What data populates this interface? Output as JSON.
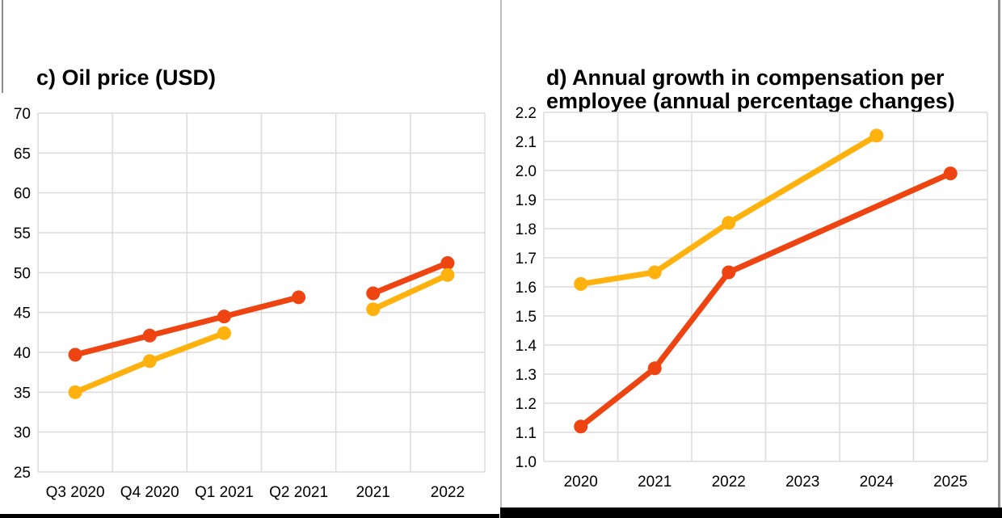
{
  "panels": [
    {
      "id": "panel-c",
      "title_lines": [
        "c) Oil price (USD)"
      ]
    },
    {
      "id": "panel-d",
      "title_lines": [
        "d) Annual growth in compensation per",
        "employee (annual percentage changes)"
      ]
    }
  ],
  "colors": {
    "series_red": "#ED4411",
    "series_yellow": "#FFB10E",
    "grid": "#DBDBDB",
    "divider_gray": "#BDBDBD",
    "border_gray": "#8C8C8C",
    "bottom_bar": "#000000"
  },
  "chart_data": [
    {
      "type": "line",
      "title": "c) Oil price (USD)",
      "categories": [
        "Q3 2020",
        "Q4 2020",
        "Q1 2021",
        "Q2 2021",
        "2021",
        "2022"
      ],
      "ylim": [
        25,
        70
      ],
      "yticks": [
        70,
        65,
        60,
        55,
        50,
        45,
        40,
        35,
        30,
        25
      ],
      "ytick_labels": [
        "70",
        "65",
        "60",
        "55",
        "50",
        "45",
        "40",
        "35",
        "30",
        "25"
      ],
      "grid": true,
      "legend": "none",
      "series": [
        {
          "name": "red-line",
          "color": "#ED4411",
          "segments": [
            [
              [
                0,
                39.7
              ],
              [
                1,
                42.1
              ],
              [
                2,
                44.5
              ],
              [
                3,
                46.9
              ]
            ],
            [
              [
                4,
                47.4
              ],
              [
                5,
                51.2
              ]
            ]
          ]
        },
        {
          "name": "yellow-line",
          "color": "#FFB10E",
          "segments": [
            [
              [
                0,
                35.0
              ],
              [
                1,
                38.9
              ],
              [
                2,
                42.4
              ]
            ],
            [
              [
                4,
                45.4
              ],
              [
                5,
                49.7
              ]
            ]
          ]
        }
      ]
    },
    {
      "type": "line",
      "title": "d) Annual growth in compensation per employee (annual percentage changes)",
      "categories": [
        "2020",
        "2021",
        "2022",
        "2023",
        "2024",
        "2025"
      ],
      "ylim": [
        1.0,
        2.2
      ],
      "yticks": [
        2.2,
        2.1,
        2.0,
        1.9,
        1.8,
        1.7,
        1.6,
        1.5,
        1.4,
        1.3,
        1.2,
        1.1,
        1.0
      ],
      "ytick_labels": [
        "2.2",
        "2.1",
        "2.0",
        "1.9",
        "1.8",
        "1.7",
        "1.6",
        "1.5",
        "1.4",
        "1.3",
        "1.2",
        "1.1",
        "1.0"
      ],
      "grid": true,
      "legend": "none",
      "series": [
        {
          "name": "yellow-line",
          "color": "#FFB10E",
          "segments": [
            [
              [
                0,
                1.61
              ],
              [
                1,
                1.65
              ],
              [
                2,
                1.82
              ],
              [
                4,
                2.12
              ]
            ]
          ]
        },
        {
          "name": "red-line",
          "color": "#ED4411",
          "segments": [
            [
              [
                0,
                1.12
              ],
              [
                1,
                1.32
              ],
              [
                2,
                1.65
              ],
              [
                5,
                1.99
              ]
            ]
          ]
        }
      ]
    }
  ]
}
